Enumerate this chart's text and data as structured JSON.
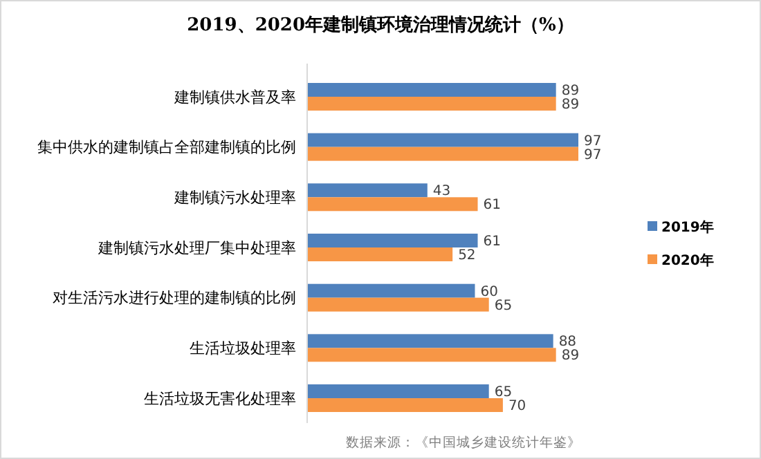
{
  "chart_data": {
    "type": "bar",
    "orientation": "horizontal",
    "title": "2019、2020年建制镇环境治理情况统计（%）",
    "categories": [
      "建制镇供水普及率",
      "集中供水的建制镇占全部建制镇的比例",
      "建制镇污水处理率",
      "建制镇污水处理厂集中处理率",
      "对生活污水进行处理的建制镇的比例",
      "生活垃圾处理率",
      "生活垃圾无害化处理率"
    ],
    "series": [
      {
        "name": "2019年",
        "color": "#4f81bd",
        "values": [
          89,
          97,
          43,
          61,
          60,
          88,
          65
        ]
      },
      {
        "name": "2020年",
        "color": "#f79646",
        "values": [
          89,
          97,
          61,
          52,
          65,
          89,
          70
        ]
      }
    ],
    "data_labels": true,
    "legend": "right",
    "annotations": [
      "数据来源：《中国城乡建设统计年鉴》"
    ]
  }
}
